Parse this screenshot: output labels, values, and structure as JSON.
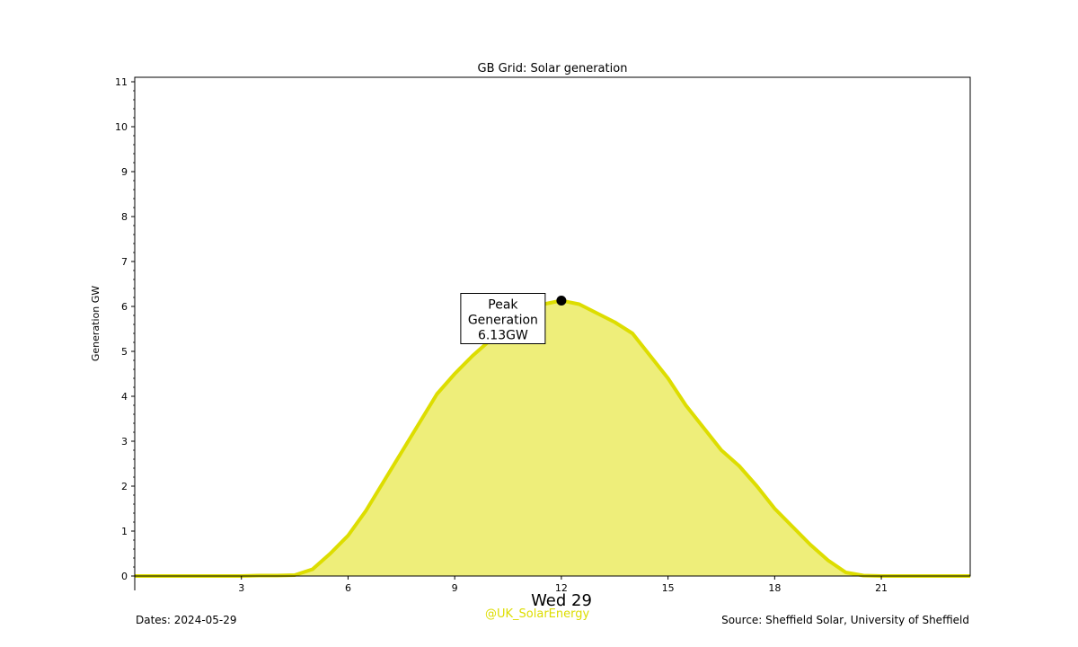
{
  "chart_data": {
    "type": "area",
    "title": "GB Grid: Solar generation",
    "ylabel": "Generation GW",
    "xlabel": "Wed 29",
    "xlim": [
      0,
      23.5
    ],
    "ylim": [
      0,
      11.1
    ],
    "x_ticks": [
      3,
      6,
      9,
      12,
      15,
      18,
      21
    ],
    "y_ticks": [
      0,
      1,
      2,
      3,
      4,
      5,
      6,
      7,
      8,
      9,
      10,
      11
    ],
    "grid": false,
    "colors": {
      "line": "#dddd00",
      "fill": "#eeee7a",
      "watermark": "#dddd00"
    },
    "x": [
      0,
      0.5,
      1,
      1.5,
      2,
      2.5,
      3,
      3.5,
      4,
      4.5,
      5,
      5.5,
      6,
      6.5,
      7,
      7.5,
      8,
      8.5,
      9,
      9.5,
      10,
      10.5,
      11,
      11.5,
      12,
      12.5,
      13,
      13.5,
      14,
      14.5,
      15,
      15.5,
      16,
      16.5,
      17,
      17.5,
      18,
      18.5,
      19,
      19.5,
      20,
      20.5,
      21,
      21.5,
      22,
      22.5,
      23,
      23.5
    ],
    "values": [
      0,
      0,
      0,
      0,
      0,
      0,
      0,
      0.01,
      0.01,
      0.02,
      0.15,
      0.5,
      0.9,
      1.45,
      2.1,
      2.75,
      3.4,
      4.05,
      4.5,
      4.9,
      5.25,
      5.55,
      5.85,
      6.05,
      6.13,
      6.05,
      5.85,
      5.65,
      5.4,
      4.9,
      4.4,
      3.8,
      3.3,
      2.8,
      2.45,
      2.0,
      1.5,
      1.1,
      0.7,
      0.35,
      0.08,
      0.01,
      0,
      0,
      0,
      0,
      0,
      0
    ],
    "peak": {
      "x": 12,
      "y": 6.13,
      "label_lines": [
        "Peak",
        "Generation",
        "6.13GW"
      ]
    }
  },
  "footer": {
    "dates": "Dates: 2024-05-29",
    "watermark": "@UK_SolarEnergy",
    "source": "Source: Sheffield Solar, University of Sheffield"
  }
}
